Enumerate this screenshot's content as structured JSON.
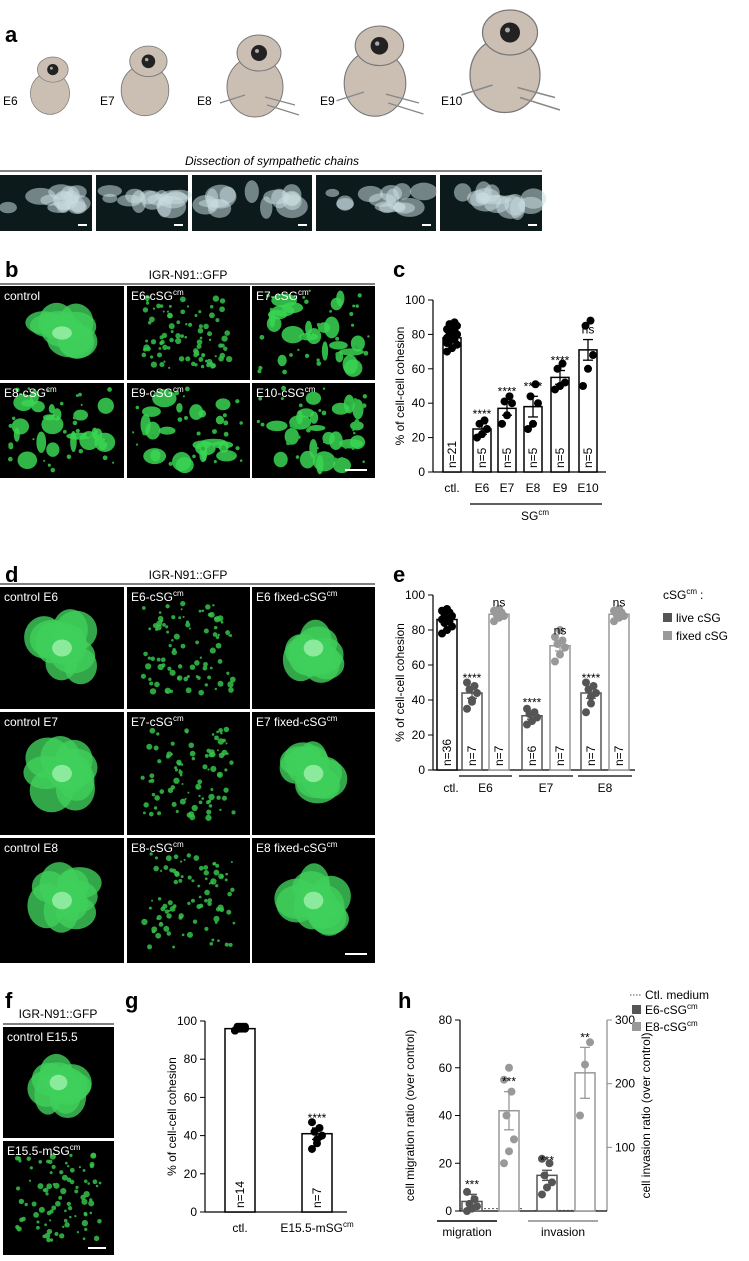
{
  "panel_letters": [
    "a",
    "b",
    "c",
    "d",
    "e",
    "f",
    "g",
    "h"
  ],
  "panel_a": {
    "stages": [
      "E6",
      "E7",
      "E8",
      "E9",
      "E10"
    ],
    "caption": "Dissection of sympathetic chains"
  },
  "panel_b": {
    "title": "IGR-N91::GFP",
    "images": [
      {
        "base": "control"
      },
      {
        "base": "E6-cSG",
        "sup": "cm"
      },
      {
        "base": "E7-cSG",
        "sup": "cm"
      },
      {
        "base": "E8-cSG",
        "sup": "cm"
      },
      {
        "base": "E9-cSG",
        "sup": "cm"
      },
      {
        "base": "E10-cSG",
        "sup": "cm"
      }
    ]
  },
  "panel_d": {
    "title": "IGR-N91::GFP",
    "images": [
      {
        "base": "control E6"
      },
      {
        "base": "E6-cSG",
        "sup": "cm"
      },
      {
        "base": "E6 fixed-cSG",
        "sup": "cm"
      },
      {
        "base": "control E7"
      },
      {
        "base": "E7-cSG",
        "sup": "cm"
      },
      {
        "base": "E7 fixed-cSG",
        "sup": "cm"
      },
      {
        "base": "control E8"
      },
      {
        "base": "E8-cSG",
        "sup": "cm"
      },
      {
        "base": "E8 fixed-cSG",
        "sup": "cm"
      }
    ]
  },
  "panel_f": {
    "title": "IGR-N91::GFP",
    "images": [
      {
        "base": "control E15.5"
      },
      {
        "base": "E15.5-mSG",
        "sup": "cm"
      }
    ]
  },
  "chart_data": [
    {
      "type": "bar",
      "ylabel": "% of cell-cell cohesion",
      "color": "#000000",
      "categories": [
        "ctl.",
        "E6",
        "E7",
        "E8",
        "E9",
        "E10"
      ],
      "values": [
        78,
        25,
        37,
        38,
        55,
        71
      ],
      "errors": [
        1.5,
        3,
        4,
        6,
        4,
        6
      ],
      "n_labels": [
        "n=21",
        "n=5",
        "n=5",
        "n=5",
        "n=5",
        "n=5"
      ],
      "significance": [
        null,
        "****",
        "****",
        "****",
        "****",
        "ns"
      ],
      "points": [
        [
          70,
          72,
          74,
          76,
          77,
          78,
          79,
          80,
          81,
          82,
          83,
          84,
          85,
          86,
          87,
          76,
          78,
          80,
          82,
          84,
          75
        ],
        [
          20,
          22,
          25,
          28,
          30
        ],
        [
          28,
          33,
          40,
          41,
          44
        ],
        [
          25,
          28,
          40,
          44,
          51
        ],
        [
          48,
          50,
          52,
          60,
          63
        ],
        [
          50,
          60,
          68,
          85,
          88
        ]
      ],
      "group_label": {
        "base": "SG",
        "sup": "cm"
      },
      "ylim": [
        0,
        100
      ],
      "yticks": [
        0,
        20,
        40,
        60,
        80,
        100
      ]
    },
    {
      "type": "grouped-bar",
      "ylabel": "% of cell-cell cohesion",
      "control": {
        "label": "ctl.",
        "color": "#000000",
        "value": 86,
        "error": 1,
        "n_label": "n=36",
        "points": [
          78,
          80,
          82,
          84,
          85,
          86,
          87,
          88,
          89,
          90,
          91,
          92
        ]
      },
      "groups": [
        "E6",
        "E7",
        "E8"
      ],
      "legend_title": {
        "base": "cSG",
        "sup": "cm",
        "after": ":"
      },
      "series": [
        {
          "name": "live cSG",
          "color": "#555555",
          "values": [
            44,
            31,
            44
          ],
          "errors": [
            3,
            2,
            3
          ],
          "n_labels": [
            "n=7",
            "n=6",
            "n=7"
          ],
          "significance": [
            "****",
            "****",
            "****"
          ],
          "points": [
            [
              35,
              40,
              44,
              46,
              48,
              50,
              39
            ],
            [
              26,
              28,
              30,
              32,
              33,
              35
            ],
            [
              33,
              38,
              44,
              46,
              48,
              50,
              42
            ]
          ]
        },
        {
          "name": "fixed cSG",
          "color": "#999999",
          "values": [
            89,
            71,
            89
          ],
          "errors": [
            1,
            3,
            1
          ],
          "n_labels": [
            "n=7",
            "n=7",
            "n=7"
          ],
          "significance": [
            "ns",
            "ns",
            "ns"
          ],
          "points": [
            [
              85,
              87,
              88,
              89,
              90,
              91,
              92
            ],
            [
              62,
              66,
              70,
              72,
              74,
              76,
              80
            ],
            [
              85,
              87,
              88,
              89,
              90,
              91,
              92
            ]
          ]
        }
      ],
      "ylim": [
        0,
        100
      ],
      "yticks": [
        0,
        20,
        40,
        60,
        80,
        100
      ]
    },
    {
      "type": "bar",
      "ylabel": "% of cell-cell cohesion",
      "color": "#000000",
      "categories": [
        "ctl.",
        "E15.5-mSG"
      ],
      "category_sups": [
        null,
        "cm"
      ],
      "values": [
        96,
        41
      ],
      "errors": [
        0.5,
        3
      ],
      "n_labels": [
        "n=14",
        "n=7"
      ],
      "significance": [
        null,
        "****"
      ],
      "points": [
        [
          95,
          96,
          96,
          97,
          96,
          95,
          97,
          96,
          96,
          97,
          95,
          96,
          97,
          96
        ],
        [
          33,
          36,
          40,
          42,
          44,
          47,
          38
        ]
      ],
      "ylim": [
        0,
        100
      ],
      "yticks": [
        0,
        20,
        40,
        60,
        80,
        100
      ]
    },
    {
      "type": "dual-axis-bar",
      "ylabel": "cell migration ratio (over control)",
      "y2label": "cell invasion ratio (over control)",
      "categories": [
        "migration",
        "invasion"
      ],
      "category_axes": [
        "y",
        "y2"
      ],
      "control_label": "Ctl. medium",
      "control_value": 1,
      "series": [
        {
          "name": "E6-cSG",
          "name_sup": "cm",
          "color": "#555555",
          "values": [
            4,
            56
          ],
          "errors": [
            3,
            8
          ],
          "significance": [
            "***",
            "***"
          ],
          "points": [
            [
              0,
              1,
              2,
              3,
              5,
              8
            ],
            [
              26,
              37,
              45,
              56,
              75,
              82
            ]
          ]
        },
        {
          "name": "E8-cSG",
          "name_sup": "cm",
          "color": "#999999",
          "values": [
            42,
            217
          ],
          "errors": [
            8,
            40
          ],
          "significance": [
            "***",
            "**"
          ],
          "points": [
            [
              20,
              25,
              30,
              40,
              50,
              55,
              60
            ],
            [
              150,
              230,
              265
            ]
          ]
        }
      ],
      "ylim": [
        0,
        80
      ],
      "yticks": [
        0,
        20,
        40,
        60,
        80
      ],
      "y2lim": [
        0,
        300
      ],
      "y2ticks": [
        100,
        200,
        300
      ]
    }
  ]
}
